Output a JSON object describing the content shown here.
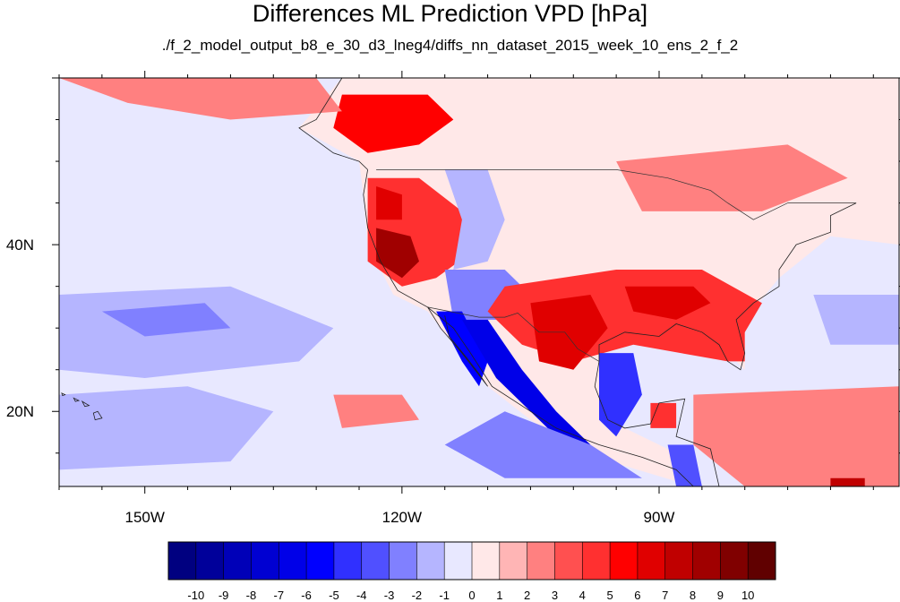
{
  "title": "Differences ML Prediction VPD [hPa]",
  "subtitle": "./f_2_model_output_b8_e_30_d3_lneg4/diffs_nn_dataset_2015_week_10_ens_2_f_2",
  "map": {
    "lon_range": [
      -160,
      -62
    ],
    "lat_range": [
      11,
      60
    ],
    "x_ticks": [
      {
        "lon": -150,
        "label": "150W"
      },
      {
        "lon": -120,
        "label": "120W"
      },
      {
        "lon": -90,
        "label": "90W"
      }
    ],
    "y_ticks": [
      {
        "lat": 40,
        "label": "40N"
      },
      {
        "lat": 20,
        "label": "20N"
      }
    ],
    "regions": [
      {
        "name": "pacific-northwest-canada-positive",
        "value": 5,
        "pts": [
          [
            -127,
            58
          ],
          [
            -117,
            58
          ],
          [
            -114,
            55
          ],
          [
            -118,
            52
          ],
          [
            -124,
            51
          ],
          [
            -128,
            54
          ]
        ]
      },
      {
        "name": "alaska-gulf-positive",
        "value": 2,
        "pts": [
          [
            -160,
            60
          ],
          [
            -130,
            60
          ],
          [
            -127,
            56
          ],
          [
            -140,
            55
          ],
          [
            -152,
            57
          ]
        ]
      },
      {
        "name": "western-us-positive",
        "value": 4,
        "pts": [
          [
            -124,
            48
          ],
          [
            -118,
            48
          ],
          [
            -113,
            44
          ],
          [
            -112,
            39
          ],
          [
            -116,
            36
          ],
          [
            -120,
            35
          ],
          [
            -124,
            38
          ]
        ]
      },
      {
        "name": "california-core-positive",
        "value": 8,
        "pts": [
          [
            -123,
            42
          ],
          [
            -119,
            41
          ],
          [
            -118,
            38
          ],
          [
            -120,
            36
          ],
          [
            -123,
            38
          ]
        ]
      },
      {
        "name": "oregon-core-positive",
        "value": 6,
        "pts": [
          [
            -123,
            47
          ],
          [
            -120,
            46
          ],
          [
            -120,
            43
          ],
          [
            -123,
            43
          ]
        ]
      },
      {
        "name": "rockies-negative",
        "value": -2,
        "pts": [
          [
            -115,
            49
          ],
          [
            -110,
            49
          ],
          [
            -108,
            43
          ],
          [
            -110,
            38
          ],
          [
            -114,
            37
          ],
          [
            -113,
            43
          ]
        ]
      },
      {
        "name": "southwest-negative",
        "value": -3,
        "pts": [
          [
            -115,
            37
          ],
          [
            -108,
            37
          ],
          [
            -105,
            34
          ],
          [
            -109,
            31
          ],
          [
            -114,
            31
          ]
        ]
      },
      {
        "name": "south-central-positive",
        "value": 4,
        "pts": [
          [
            -108,
            35
          ],
          [
            -95,
            37
          ],
          [
            -85,
            37
          ],
          [
            -78,
            33
          ],
          [
            -82,
            26
          ],
          [
            -93,
            28
          ],
          [
            -100,
            26
          ],
          [
            -106,
            28
          ],
          [
            -110,
            32
          ]
        ]
      },
      {
        "name": "texas-mexico-core-positive",
        "value": 6,
        "pts": [
          [
            -105,
            33
          ],
          [
            -98,
            34
          ],
          [
            -96,
            30
          ],
          [
            -100,
            25
          ],
          [
            -104,
            26
          ]
        ]
      },
      {
        "name": "southeast-core-positive",
        "value": 6,
        "pts": [
          [
            -94,
            35
          ],
          [
            -86,
            35
          ],
          [
            -84,
            33
          ],
          [
            -88,
            31
          ],
          [
            -93,
            32
          ]
        ]
      },
      {
        "name": "baja-california-negative",
        "value": -6,
        "pts": [
          [
            -116,
            32
          ],
          [
            -113,
            32
          ],
          [
            -110,
            26
          ],
          [
            -111,
            23
          ],
          [
            -113,
            26
          ]
        ]
      },
      {
        "name": "mexico-west-coast-negative",
        "value": -7,
        "pts": [
          [
            -113,
            31
          ],
          [
            -110,
            31
          ],
          [
            -106,
            25
          ],
          [
            -102,
            20
          ],
          [
            -98,
            16
          ],
          [
            -100,
            15
          ],
          [
            -104,
            19
          ],
          [
            -109,
            24
          ]
        ]
      },
      {
        "name": "gulf-of-mexico-negative",
        "value": -5,
        "pts": [
          [
            -97,
            27
          ],
          [
            -93,
            27
          ],
          [
            -92,
            22
          ],
          [
            -95,
            17
          ],
          [
            -97,
            19
          ]
        ]
      },
      {
        "name": "east-pacific-negative",
        "value": -3,
        "pts": [
          [
            -108,
            20
          ],
          [
            -98,
            16
          ],
          [
            -92,
            12
          ],
          [
            -108,
            12
          ],
          [
            -115,
            16
          ]
        ]
      },
      {
        "name": "central-america-negative",
        "value": -4,
        "pts": [
          [
            -89,
            16
          ],
          [
            -86,
            16
          ],
          [
            -85,
            11
          ],
          [
            -88,
            11
          ]
        ]
      },
      {
        "name": "pacific-east-negative",
        "value": -2,
        "pts": [
          [
            -160,
            34
          ],
          [
            -140,
            35
          ],
          [
            -128,
            30
          ],
          [
            -132,
            26
          ],
          [
            -150,
            24
          ],
          [
            -160,
            25
          ]
        ]
      },
      {
        "name": "pacific-south-negative",
        "value": -2,
        "pts": [
          [
            -160,
            22
          ],
          [
            -145,
            23
          ],
          [
            -135,
            20
          ],
          [
            -140,
            14
          ],
          [
            -160,
            13
          ]
        ]
      },
      {
        "name": "pacific-band-negative",
        "value": -3,
        "pts": [
          [
            -155,
            32
          ],
          [
            -143,
            33
          ],
          [
            -140,
            30
          ],
          [
            -150,
            29
          ]
        ]
      },
      {
        "name": "atlantic-east-negative",
        "value": -2,
        "pts": [
          [
            -72,
            34
          ],
          [
            -62,
            34
          ],
          [
            -62,
            28
          ],
          [
            -70,
            28
          ]
        ]
      },
      {
        "name": "caribbean-positive",
        "value": 2,
        "pts": [
          [
            -86,
            22
          ],
          [
            -62,
            23
          ],
          [
            -62,
            11
          ],
          [
            -80,
            11
          ],
          [
            -86,
            16
          ]
        ]
      },
      {
        "name": "caribbean-hotspot",
        "value": 7,
        "pts": [
          [
            -70,
            12
          ],
          [
            -66,
            12
          ],
          [
            -66,
            11
          ],
          [
            -70,
            11
          ]
        ]
      },
      {
        "name": "eastern-canada-positive",
        "value": 2,
        "pts": [
          [
            -95,
            50
          ],
          [
            -75,
            52
          ],
          [
            -68,
            48
          ],
          [
            -78,
            44
          ],
          [
            -92,
            44
          ]
        ]
      },
      {
        "name": "florida-positive",
        "value": 4,
        "pts": [
          [
            -84,
            31
          ],
          [
            -80,
            31
          ],
          [
            -80,
            26
          ],
          [
            -82,
            26
          ]
        ]
      },
      {
        "name": "pacific-positive",
        "value": 2,
        "pts": [
          [
            -128,
            22
          ],
          [
            -120,
            22
          ],
          [
            -118,
            19
          ],
          [
            -127,
            18
          ]
        ]
      },
      {
        "name": "yucatan-positive",
        "value": 4,
        "pts": [
          [
            -91,
            21
          ],
          [
            -88,
            21
          ],
          [
            -88,
            18
          ],
          [
            -91,
            18
          ]
        ]
      }
    ],
    "coastline": [
      [
        [
          -124,
          49
        ],
        [
          -124.5,
          46
        ],
        [
          -124,
          42
        ],
        [
          -122.5,
          38
        ],
        [
          -120.5,
          34.5
        ],
        [
          -117,
          32.5
        ],
        [
          -114,
          30
        ],
        [
          -112,
          27
        ],
        [
          -109.5,
          23
        ],
        [
          -105,
          20
        ],
        [
          -102,
          18
        ],
        [
          -97,
          16
        ],
        [
          -92,
          14.5
        ],
        [
          -88,
          13
        ],
        [
          -86,
          11
        ]
      ],
      [
        [
          -117,
          32.5
        ],
        [
          -115.5,
          30
        ],
        [
          -113,
          27
        ],
        [
          -110,
          23
        ],
        [
          -111,
          24.5
        ],
        [
          -112.5,
          26.5
        ],
        [
          -114.5,
          29
        ],
        [
          -115,
          31.5
        ]
      ],
      [
        [
          -97,
          26
        ],
        [
          -97.5,
          23
        ],
        [
          -96,
          19
        ],
        [
          -94,
          18
        ],
        [
          -91,
          18.5
        ],
        [
          -90,
          21
        ],
        [
          -87,
          21.5
        ],
        [
          -88,
          17
        ],
        [
          -84,
          15.5
        ],
        [
          -83,
          11
        ]
      ],
      [
        [
          -97,
          26
        ],
        [
          -97,
          28
        ],
        [
          -94,
          29.5
        ],
        [
          -90,
          29
        ],
        [
          -88,
          30.5
        ],
        [
          -85,
          29.5
        ],
        [
          -83,
          28
        ],
        [
          -82,
          26
        ],
        [
          -80.5,
          25
        ],
        [
          -80,
          27
        ],
        [
          -81,
          31
        ],
        [
          -79,
          33
        ],
        [
          -76,
          35
        ],
        [
          -76,
          37
        ],
        [
          -74,
          40
        ],
        [
          -70,
          41.5
        ],
        [
          -70,
          43.5
        ],
        [
          -67,
          45
        ]
      ],
      [
        [
          -127,
          60
        ],
        [
          -130,
          55
        ],
        [
          -132,
          54
        ],
        [
          -128,
          51
        ],
        [
          -125,
          50
        ],
        [
          -124,
          49
        ]
      ]
    ],
    "borders": [
      [
        [
          -123,
          49
        ],
        [
          -95,
          49
        ],
        [
          -89,
          48
        ],
        [
          -84,
          46.5
        ],
        [
          -82,
          45
        ],
        [
          -79,
          43
        ],
        [
          -75,
          45
        ],
        [
          -71,
          45
        ],
        [
          -67,
          45
        ]
      ],
      [
        [
          -117,
          32.5
        ],
        [
          -111,
          31.3
        ],
        [
          -108,
          31.3
        ],
        [
          -106.5,
          31.8
        ],
        [
          -104,
          29.5
        ],
        [
          -101,
          29.5
        ],
        [
          -99.5,
          27.5
        ],
        [
          -97,
          26
        ]
      ]
    ],
    "hawaii": [
      [
        [
          -155.5,
          20
        ],
        [
          -155,
          19.2
        ],
        [
          -155.8,
          19
        ],
        [
          -156,
          19.8
        ]
      ],
      [
        [
          -157.3,
          21.2
        ],
        [
          -156.5,
          20.7
        ],
        [
          -157,
          20.6
        ]
      ],
      [
        [
          -158.3,
          21.6
        ],
        [
          -157.7,
          21.3
        ],
        [
          -158.1,
          21.2
        ]
      ],
      [
        [
          -159.7,
          22.2
        ],
        [
          -159.3,
          22
        ],
        [
          -159.6,
          21.9
        ]
      ]
    ]
  },
  "colorbar": {
    "labels": [
      "-10",
      "-9",
      "-8",
      "-7",
      "-6",
      "-5",
      "-4",
      "-3",
      "-2",
      "-1",
      "0",
      "1",
      "2",
      "3",
      "4",
      "5",
      "6",
      "7",
      "8",
      "9",
      "10"
    ],
    "colors": [
      "#000080",
      "#00009a",
      "#0000b8",
      "#0000d2",
      "#0000e8",
      "#0000ff",
      "#3030ff",
      "#5050ff",
      "#8080ff",
      "#b5b5ff",
      "#e8e8ff",
      "#ffe8e8",
      "#ffb5b5",
      "#ff8080",
      "#ff5050",
      "#ff3030",
      "#ff0000",
      "#e00000",
      "#c00000",
      "#a00000",
      "#800000",
      "#600000"
    ]
  }
}
